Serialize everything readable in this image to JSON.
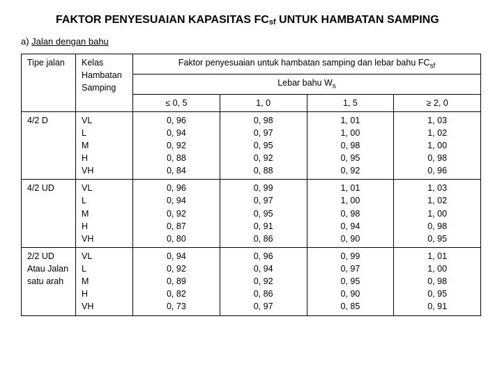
{
  "title_part1": "FAKTOR PENYESUAIAN KAPASITAS FC",
  "title_sub": "sf",
  "title_part2": " UNTUK HAMBATAN SAMPING",
  "subhead_prefix": "a) ",
  "subhead_text": "Jalan dengan bahu",
  "headers": {
    "tipe": "Tipe jalan",
    "kelas": "Kelas Hambatan Samping",
    "main_a": "Faktor penyesuaian untuk hambatan samping dan lebar bahu FC",
    "main_sub": "sf",
    "lebar_a": "Lebar bahu W",
    "lebar_sub": "s",
    "c1": "≤ 0, 5",
    "c2": "1, 0",
    "c3": "1, 5",
    "c4": "≥ 2, 0"
  },
  "groups": [
    {
      "tipe": "4/2 D",
      "kelas": [
        "VL",
        "L",
        "M",
        "H",
        "VH"
      ],
      "cols": [
        [
          "0, 96",
          "0, 94",
          "0, 92",
          "0, 88",
          "0, 84"
        ],
        [
          "0, 98",
          "0, 97",
          "0, 95",
          "0, 92",
          "0, 88"
        ],
        [
          "1, 01",
          "1, 00",
          "0, 98",
          "0, 95",
          "0, 92"
        ],
        [
          "1, 03",
          "1, 02",
          "1, 00",
          "0, 98",
          "0, 96"
        ]
      ]
    },
    {
      "tipe": "4/2 UD",
      "kelas": [
        "VL",
        "L",
        "M",
        "H",
        "VH"
      ],
      "cols": [
        [
          "0, 96",
          "0, 94",
          "0, 92",
          "0, 87",
          "0, 80"
        ],
        [
          "0, 99",
          "0, 97",
          "0, 95",
          "0, 91",
          "0, 86"
        ],
        [
          "1, 01",
          "1, 00",
          "0, 98",
          "0, 94",
          "0, 90"
        ],
        [
          "1, 03",
          "1, 02",
          "1, 00",
          "0, 98",
          "0, 95"
        ]
      ]
    },
    {
      "tipe": "2/2 UD Atau Jalan satu arah",
      "kelas": [
        "VL",
        "L",
        "M",
        "H",
        "VH"
      ],
      "cols": [
        [
          "0, 94",
          "0, 92",
          "0, 89",
          "0, 82",
          "0, 73"
        ],
        [
          "0, 96",
          "0, 94",
          "0, 92",
          "0, 86",
          "0, 97"
        ],
        [
          "0, 99",
          "0, 97",
          "0, 95",
          "0, 90",
          "0, 85"
        ],
        [
          "1, 01",
          "1, 00",
          "0, 98",
          "0, 95",
          "0, 91"
        ]
      ]
    }
  ]
}
